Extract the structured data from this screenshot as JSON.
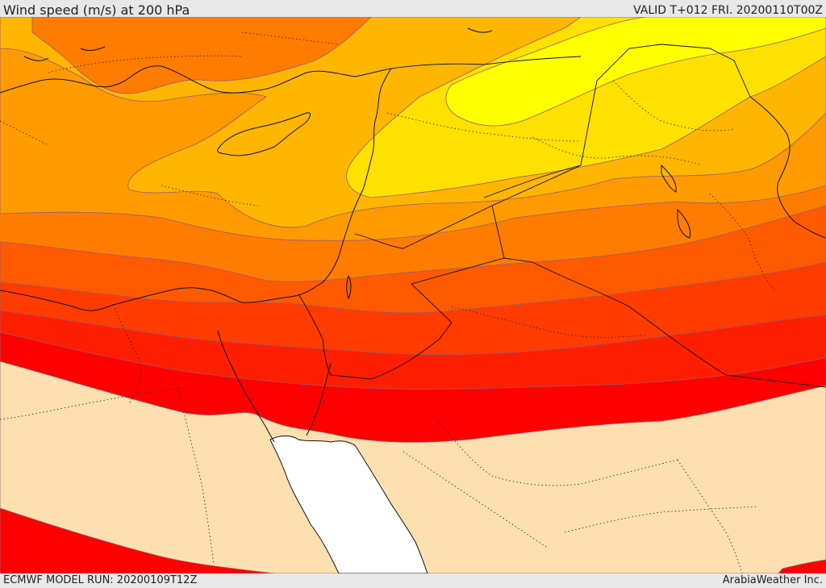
{
  "header": {
    "title": "Wind speed (m/s) at 200 hPa",
    "valid": "VALID T+012 FRI. 20200110T00Z"
  },
  "footer": {
    "model_run": "ECMWF MODEL RUN: 20200109T12Z",
    "credit": "ArabiaWeather Inc."
  },
  "map": {
    "variable": "wind speed at 200 hPa",
    "bands": [
      {
        "name": "low-band",
        "color": "#fde0b0"
      },
      {
        "name": "band-1",
        "color": "#ff0000"
      },
      {
        "name": "band-2",
        "color": "#ff1e00"
      },
      {
        "name": "band-3",
        "color": "#ff3b00"
      },
      {
        "name": "band-4",
        "color": "#ff5a00"
      },
      {
        "name": "band-5",
        "color": "#ff7c00"
      },
      {
        "name": "band-6",
        "color": "#ff9b00"
      },
      {
        "name": "band-7",
        "color": "#ffb600"
      },
      {
        "name": "band-8",
        "color": "#ffe100"
      },
      {
        "name": "band-9",
        "color": "#ffff00"
      }
    ],
    "sea_color": "#ffffff"
  }
}
